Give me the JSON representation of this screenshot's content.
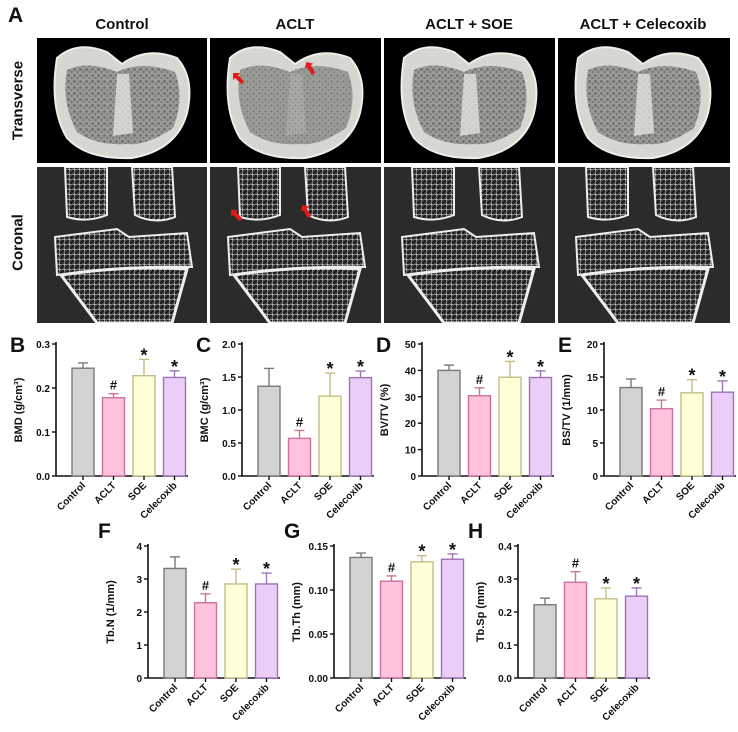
{
  "figure": {
    "panel_a": {
      "letter": "A",
      "column_titles": [
        "Control",
        "ACLT",
        "ACLT + SOE",
        "ACLT + Celecoxib"
      ],
      "row_titles": [
        "Transverse",
        "Coronal"
      ],
      "arrow_color": "#e31a1a",
      "arrows_in_group": "ACLT"
    },
    "groups": [
      "Control",
      "ACLT",
      "SOE",
      "Celecoxib"
    ],
    "group_colors": {
      "fill": [
        "#d3d3d3",
        "#ffc2dd",
        "#ffffd8",
        "#ebcdf9"
      ],
      "stroke": [
        "#7a7a7a",
        "#c9739f",
        "#c4bd88",
        "#9d74b6"
      ]
    },
    "significance_legend": {
      "vs_control": "#",
      "vs_aclt": "*"
    }
  },
  "chart_data": [
    {
      "panel": "B",
      "type": "bar",
      "title": "",
      "xlabel": "",
      "ylabel": "BMD (g/cm³)",
      "categories": [
        "Control",
        "ACLT",
        "SOE",
        "Celecoxib"
      ],
      "values": [
        0.245,
        0.178,
        0.228,
        0.224
      ],
      "errors": [
        0.012,
        0.009,
        0.037,
        0.015
      ],
      "marks": [
        "",
        "#",
        "*",
        "*"
      ],
      "ylim": [
        0,
        0.3
      ],
      "yticks": [
        "0.0",
        "0.1",
        "0.2",
        "0.3"
      ],
      "grid": false
    },
    {
      "panel": "C",
      "type": "bar",
      "title": "",
      "xlabel": "",
      "ylabel": "BMC (g/cm³)",
      "categories": [
        "Control",
        "ACLT",
        "SOE",
        "Celecoxib"
      ],
      "values": [
        1.36,
        0.57,
        1.21,
        1.49
      ],
      "errors": [
        0.27,
        0.12,
        0.35,
        0.1
      ],
      "marks": [
        "",
        "#",
        "*",
        "*"
      ],
      "ylim": [
        0,
        2.0
      ],
      "yticks": [
        "0.0",
        "0.5",
        "1.0",
        "1.5",
        "2.0"
      ],
      "grid": false
    },
    {
      "panel": "D",
      "type": "bar",
      "title": "",
      "xlabel": "",
      "ylabel": "BV/TV (%)",
      "categories": [
        "Control",
        "ACLT",
        "SOE",
        "Celecoxib"
      ],
      "values": [
        40.0,
        30.4,
        37.4,
        37.3
      ],
      "errors": [
        2.0,
        3.0,
        6.0,
        2.5
      ],
      "marks": [
        "",
        "#",
        "*",
        "*"
      ],
      "ylim": [
        0,
        50
      ],
      "yticks": [
        "0",
        "10",
        "20",
        "30",
        "40",
        "50"
      ],
      "grid": false
    },
    {
      "panel": "E",
      "type": "bar",
      "title": "",
      "xlabel": "",
      "ylabel": "BS/TV (1/mm)",
      "categories": [
        "Control",
        "ACLT",
        "SOE",
        "Celecoxib"
      ],
      "values": [
        13.4,
        10.2,
        12.6,
        12.7
      ],
      "errors": [
        1.3,
        1.3,
        2.0,
        1.7
      ],
      "marks": [
        "",
        "#",
        "*",
        "*"
      ],
      "ylim": [
        0,
        20
      ],
      "yticks": [
        "0",
        "5",
        "10",
        "15",
        "20"
      ],
      "grid": false
    },
    {
      "panel": "F",
      "type": "bar",
      "title": "",
      "xlabel": "",
      "ylabel": "Tb.N (1/mm)",
      "categories": [
        "Control",
        "ACLT",
        "SOE",
        "Celecoxib"
      ],
      "values": [
        3.32,
        2.28,
        2.85,
        2.85
      ],
      "errors": [
        0.35,
        0.27,
        0.45,
        0.33
      ],
      "marks": [
        "",
        "#",
        "*",
        "*"
      ],
      "ylim": [
        0,
        4
      ],
      "yticks": [
        "0",
        "1",
        "2",
        "3",
        "4"
      ],
      "grid": false
    },
    {
      "panel": "G",
      "type": "bar",
      "title": "",
      "xlabel": "",
      "ylabel": "Tb.Th (mm)",
      "categories": [
        "Control",
        "ACLT",
        "SOE",
        "Celecoxib"
      ],
      "values": [
        0.137,
        0.11,
        0.132,
        0.135
      ],
      "errors": [
        0.005,
        0.006,
        0.007,
        0.006
      ],
      "marks": [
        "",
        "#",
        "*",
        "*"
      ],
      "ylim": [
        0,
        0.15
      ],
      "yticks": [
        "0.00",
        "0.05",
        "0.10",
        "0.15"
      ],
      "grid": false
    },
    {
      "panel": "H",
      "type": "bar",
      "title": "",
      "xlabel": "",
      "ylabel": "Tb.Sp (mm)",
      "categories": [
        "Control",
        "ACLT",
        "SOE",
        "Celecoxib"
      ],
      "values": [
        0.222,
        0.29,
        0.24,
        0.248
      ],
      "errors": [
        0.02,
        0.032,
        0.033,
        0.025
      ],
      "marks": [
        "",
        "#",
        "*",
        "*"
      ],
      "ylim": [
        0,
        0.4
      ],
      "yticks": [
        "0.0",
        "0.1",
        "0.2",
        "0.3",
        "0.4"
      ],
      "grid": false
    }
  ]
}
